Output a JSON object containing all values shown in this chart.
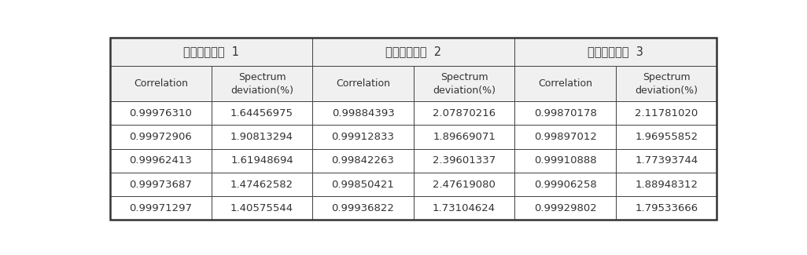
{
  "header_row1": [
    "입력전압파형  1",
    "입력전압파형  2",
    "입력전압파형  3"
  ],
  "header_row2": [
    "Correlation",
    "Spectrum\ndeviation(%)",
    "Correlation",
    "Spectrum\ndeviation(%)",
    "Correlation",
    "Spectrum\ndeviation(%)"
  ],
  "data_rows": [
    [
      "0.99976310",
      "1.64456975",
      "0.99884393",
      "2.07870216",
      "0.99870178",
      "2.11781020"
    ],
    [
      "0.99972906",
      "1.90813294",
      "0.99912833",
      "1.89669071",
      "0.99897012",
      "1.96955852"
    ],
    [
      "0.99962413",
      "1.61948694",
      "0.99842263",
      "2.39601337",
      "0.99910888",
      "1.77393744"
    ],
    [
      "0.99973687",
      "1.47462582",
      "0.99850421",
      "2.47619080",
      "0.99906258",
      "1.88948312"
    ],
    [
      "0.99971297",
      "1.40575544",
      "0.99936822",
      "1.73104624",
      "0.99929802",
      "1.79533666"
    ]
  ],
  "bg_color": "#ffffff",
  "border_color": "#444444",
  "header_bg": "#f0f0f0",
  "text_color": "#333333",
  "font_size_header1": 10.5,
  "font_size_header2": 9,
  "font_size_data": 9.5
}
